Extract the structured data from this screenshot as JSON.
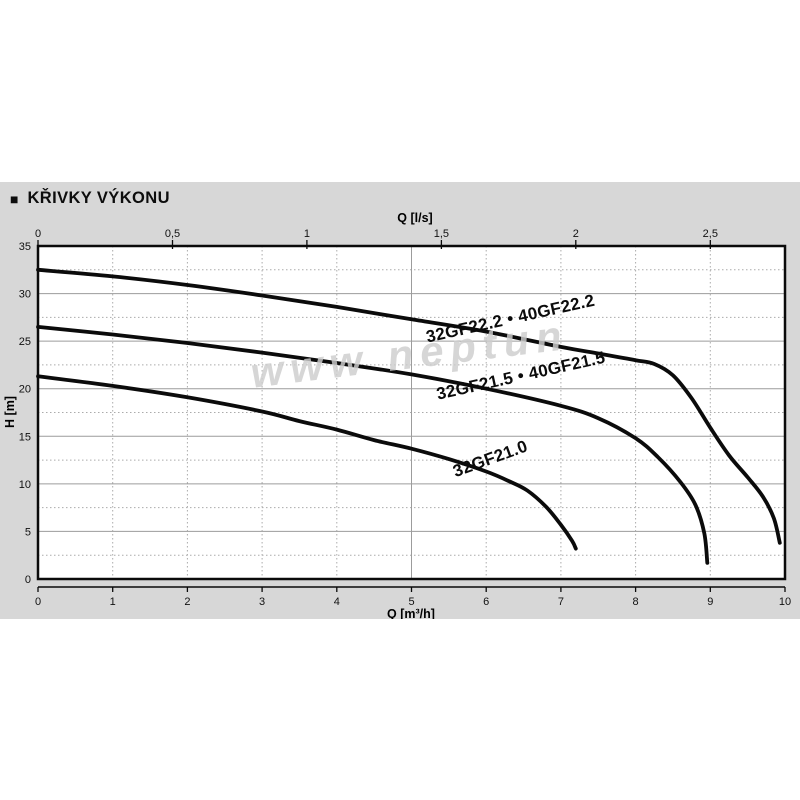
{
  "title": {
    "bullet": "■",
    "text": "KŘIVKY VÝKONU"
  },
  "watermark": "www neptun",
  "colors": {
    "page_background": "#ffffff",
    "panel_background": "#d7d7d7",
    "plot_background": "#ffffff",
    "frame": "#0a0a0a",
    "grid_major": "#9c9c9c",
    "grid_minor": "#ababab",
    "curve": "#0b0b0b",
    "text": "#111111"
  },
  "chart_data": {
    "type": "line",
    "title": "KŘIVKY VÝKONU",
    "grid": {
      "v_major_at": [
        5
      ],
      "v_minor_at": [
        1,
        2,
        3,
        4,
        6,
        7,
        8,
        9
      ],
      "h_major_at": [
        5,
        10,
        15,
        20,
        25,
        30
      ],
      "h_minor_at": [
        2.5,
        7.5,
        12.5,
        17.5,
        22.5,
        27.5,
        32.5
      ]
    },
    "top_axis": {
      "label": "Q [l/s]",
      "tick_labels": [
        "0",
        "0,5",
        "1",
        "1,5",
        "2",
        "2,5"
      ],
      "tick_values": [
        0,
        0.5,
        1,
        1.5,
        2,
        2.5
      ],
      "to_bottom_factor": 3.6
    },
    "bottom_axis": {
      "label": "Q [m³/h]",
      "tick_labels": [
        "0",
        "1",
        "2",
        "3",
        "4",
        "5",
        "6",
        "7",
        "8",
        "9",
        "10"
      ],
      "tick_values": [
        0,
        1,
        2,
        3,
        4,
        5,
        6,
        7,
        8,
        9,
        10
      ],
      "range": [
        0,
        10
      ]
    },
    "y_axis": {
      "label": "H [m]",
      "tick_labels": [
        "0",
        "5",
        "10",
        "15",
        "20",
        "25",
        "30",
        "35"
      ],
      "tick_values": [
        0,
        5,
        10,
        15,
        20,
        25,
        30,
        35
      ],
      "range": [
        0,
        35
      ]
    },
    "series": [
      {
        "name": "32GF22.2 • 40GF22.2",
        "label_anchor": {
          "q": 6.34,
          "h": 26.8,
          "angle": -12.5
        },
        "points": [
          [
            0,
            32.5
          ],
          [
            1,
            31.8
          ],
          [
            2,
            30.9
          ],
          [
            3,
            29.8
          ],
          [
            4,
            28.6
          ],
          [
            5,
            27.3
          ],
          [
            6,
            26.0
          ],
          [
            7,
            24.4
          ],
          [
            7.5,
            23.7
          ],
          [
            8,
            23.0
          ],
          [
            8.25,
            22.6
          ],
          [
            8.5,
            21.4
          ],
          [
            8.75,
            19.0
          ],
          [
            9,
            15.9
          ],
          [
            9.25,
            13.0
          ],
          [
            9.5,
            10.7
          ],
          [
            9.7,
            8.7
          ],
          [
            9.85,
            6.4
          ],
          [
            9.93,
            3.8
          ]
        ]
      },
      {
        "name": "32GF21.5 • 40GF21.5",
        "label_anchor": {
          "q": 6.48,
          "h": 20.8,
          "angle": -12.5
        },
        "points": [
          [
            0,
            26.5
          ],
          [
            1,
            25.7
          ],
          [
            2,
            24.8
          ],
          [
            3,
            23.8
          ],
          [
            4,
            22.7
          ],
          [
            5,
            21.5
          ],
          [
            6,
            20.0
          ],
          [
            7,
            18.2
          ],
          [
            7.5,
            16.9
          ],
          [
            8,
            14.8
          ],
          [
            8.3,
            12.8
          ],
          [
            8.6,
            10.2
          ],
          [
            8.8,
            7.8
          ],
          [
            8.92,
            4.8
          ],
          [
            8.96,
            1.7
          ]
        ]
      },
      {
        "name": "32GF21.0",
        "label_anchor": {
          "q": 6.08,
          "h": 12.1,
          "angle": -20
        },
        "points": [
          [
            0,
            21.3
          ],
          [
            1,
            20.3
          ],
          [
            2,
            19.1
          ],
          [
            3,
            17.6
          ],
          [
            3.5,
            16.6
          ],
          [
            4,
            15.7
          ],
          [
            4.5,
            14.6
          ],
          [
            5,
            13.7
          ],
          [
            5.5,
            12.6
          ],
          [
            6,
            11.3
          ],
          [
            6.3,
            10.3
          ],
          [
            6.55,
            9.3
          ],
          [
            6.8,
            7.6
          ],
          [
            7.0,
            5.7
          ],
          [
            7.15,
            4.0
          ],
          [
            7.2,
            3.2
          ]
        ]
      }
    ]
  }
}
